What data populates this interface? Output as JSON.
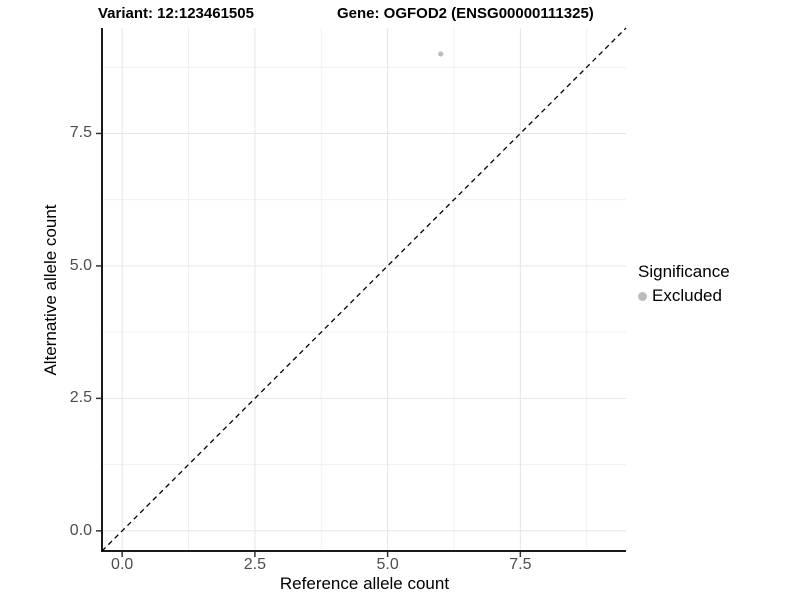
{
  "chart": {
    "title_left": "Variant: 12:123461505",
    "title_right": "Gene: OGFOD2 (ENSG00000111325)",
    "xlabel": "Reference allele count",
    "ylabel": "Alternative allele count",
    "legend": {
      "title": "Significance",
      "items": [
        {
          "label": "Excluded",
          "color": "#bdbdbd"
        }
      ]
    }
  },
  "chart_data": {
    "type": "scatter",
    "title": "Variant: 12:123461505   Gene: OGFOD2 (ENSG00000111325)",
    "xlabel": "Reference allele count",
    "ylabel": "Alternative allele count",
    "series": [
      {
        "name": "Excluded",
        "color": "#bdbdbd",
        "points": [
          {
            "x": 6,
            "y": 9
          }
        ]
      }
    ],
    "reference_line": {
      "slope": 1,
      "intercept": 0,
      "style": "dashed",
      "color": "#000000"
    },
    "x_ticks": [
      0.0,
      2.5,
      5.0,
      7.5
    ],
    "y_ticks": [
      0.0,
      2.5,
      5.0,
      7.5
    ],
    "x_minor_ticks": [
      1.25,
      3.75,
      6.25,
      8.75
    ],
    "y_minor_ticks": [
      1.25,
      3.75,
      6.25,
      8.75
    ],
    "xlim": [
      -0.38,
      9.49
    ],
    "ylim": [
      -0.38,
      9.49
    ],
    "tick_decimals": 1,
    "grid": true,
    "legend_position": "right"
  },
  "colors": {
    "grid_major": "#e4e4e4",
    "grid_minor": "#f0f0f0",
    "axis_line": "#1a1a1a",
    "tick_mark": "#333333",
    "tick_text": "#4d4d4d",
    "point": "#bdbdbd",
    "reference_line": "#000000"
  }
}
